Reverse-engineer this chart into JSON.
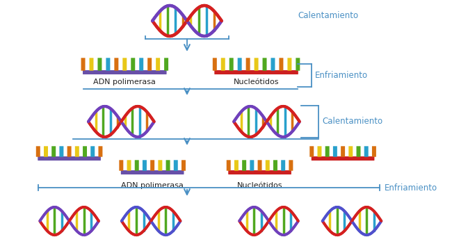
{
  "bg_color": "#ffffff",
  "arrow_color": "#4a90c4",
  "line_color": "#4a90c4",
  "label_color": "#4a90c4",
  "label_fontsize": 8.5,
  "adn_label_color": "#222222",
  "adn_label_fontsize": 8,
  "labels": {
    "calentamiento1": "Calentamiento",
    "enfriamiento1": "Enfriamiento",
    "calentamiento2": "Calentamiento",
    "enfriamiento2": "Enfriamiento",
    "adn_pol1": "ADN polimerasa",
    "nucleotidos1": "Nucleótidos",
    "adn_pol2": "ADN polimerasa",
    "nucleotidos2": "Nucleótidos"
  },
  "helix": {
    "red": "#d42020",
    "blue": "#5050cc",
    "purple": "#7040bb",
    "yellow": "#e8c818",
    "green": "#50a820",
    "cyan": "#28a0cc",
    "orange": "#d87010",
    "lt_blue": "#50a8e0"
  },
  "strand_purple": "#6850a8",
  "strand_red": "#cc2020"
}
